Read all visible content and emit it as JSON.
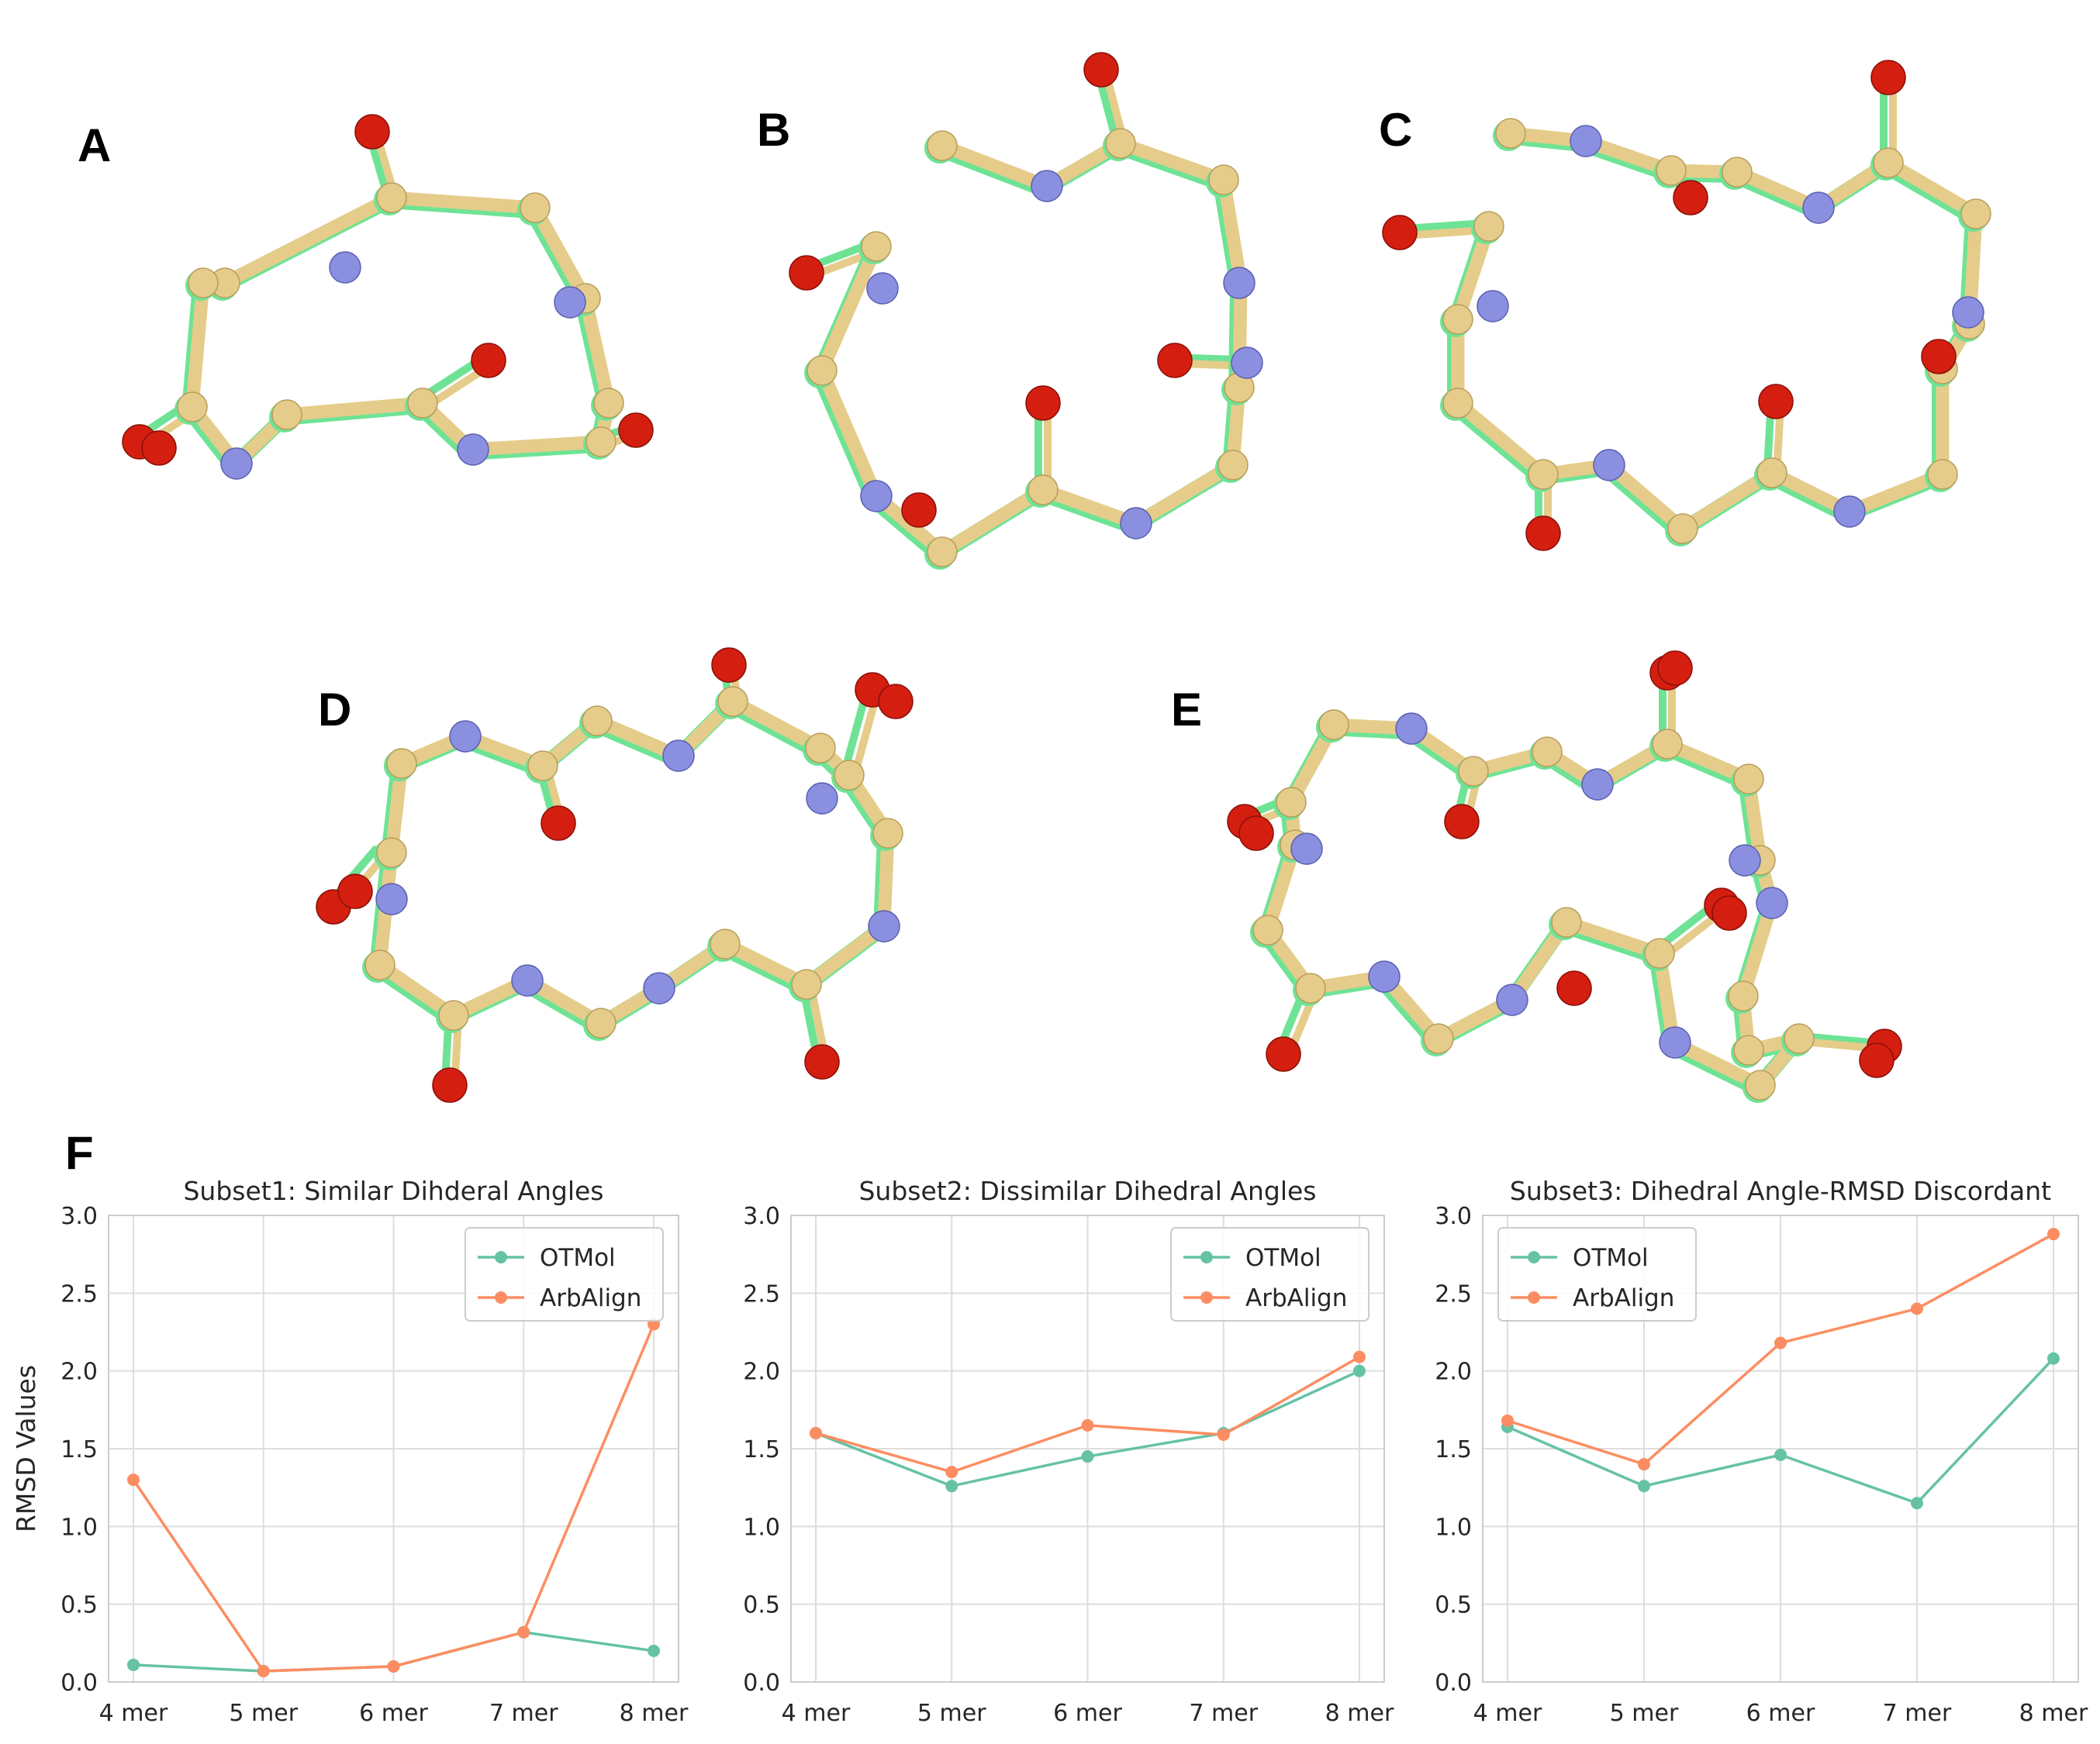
{
  "panels": {
    "a": "A",
    "b": "B",
    "c": "C",
    "d": "D",
    "e": "E",
    "f": "F"
  },
  "colors": {
    "carbon_tan": "#e5cc8a",
    "carbon_green": "#6ee395",
    "nitrogen": "#8a8fe0",
    "oxygen": "#d41f10",
    "otmol": "#66c2a5",
    "arbalign": "#fc8d62",
    "grid": "#dddddd"
  },
  "chart_data": [
    {
      "type": "line",
      "title": "Subset1: Similar Dihderal Angles",
      "ylabel": "RMSD Values",
      "xlabel": "",
      "categories": [
        "4 mer",
        "5 mer",
        "6 mer",
        "7 mer",
        "8 mer"
      ],
      "ylim": [
        0,
        3.0
      ],
      "yticks": [
        "0.0",
        "0.5",
        "1.0",
        "1.5",
        "2.0",
        "2.5",
        "3.0"
      ],
      "grid": true,
      "legend": "top-right",
      "series": [
        {
          "name": "OTMol",
          "values": [
            0.11,
            0.07,
            0.1,
            0.32,
            0.2
          ]
        },
        {
          "name": "ArbAlign",
          "values": [
            1.3,
            0.07,
            0.1,
            0.32,
            2.3
          ]
        }
      ]
    },
    {
      "type": "line",
      "title": "Subset2: Dissimilar Dihedral Angles",
      "ylabel": "",
      "xlabel": "",
      "categories": [
        "4 mer",
        "5 mer",
        "6 mer",
        "7 mer",
        "8 mer"
      ],
      "ylim": [
        0,
        3.0
      ],
      "yticks": [
        "0.0",
        "0.5",
        "1.0",
        "1.5",
        "2.0",
        "2.5",
        "3.0"
      ],
      "grid": true,
      "legend": "top-right",
      "series": [
        {
          "name": "OTMol",
          "values": [
            1.6,
            1.26,
            1.45,
            1.6,
            2.0
          ]
        },
        {
          "name": "ArbAlign",
          "values": [
            1.6,
            1.35,
            1.65,
            1.59,
            2.09
          ]
        }
      ]
    },
    {
      "type": "line",
      "title": "Subset3: Dihedral Angle-RMSD Discordant",
      "ylabel": "",
      "xlabel": "",
      "categories": [
        "4 mer",
        "5 mer",
        "6 mer",
        "7 mer",
        "8 mer"
      ],
      "ylim": [
        0,
        3.0
      ],
      "yticks": [
        "0.0",
        "0.5",
        "1.0",
        "1.5",
        "2.0",
        "2.5",
        "3.0"
      ],
      "grid": true,
      "legend": "top-left",
      "series": [
        {
          "name": "OTMol",
          "values": [
            1.64,
            1.26,
            1.46,
            1.15,
            2.08
          ]
        },
        {
          "name": "ArbAlign",
          "values": [
            1.68,
            1.4,
            2.18,
            2.4,
            2.88
          ]
        }
      ]
    }
  ]
}
